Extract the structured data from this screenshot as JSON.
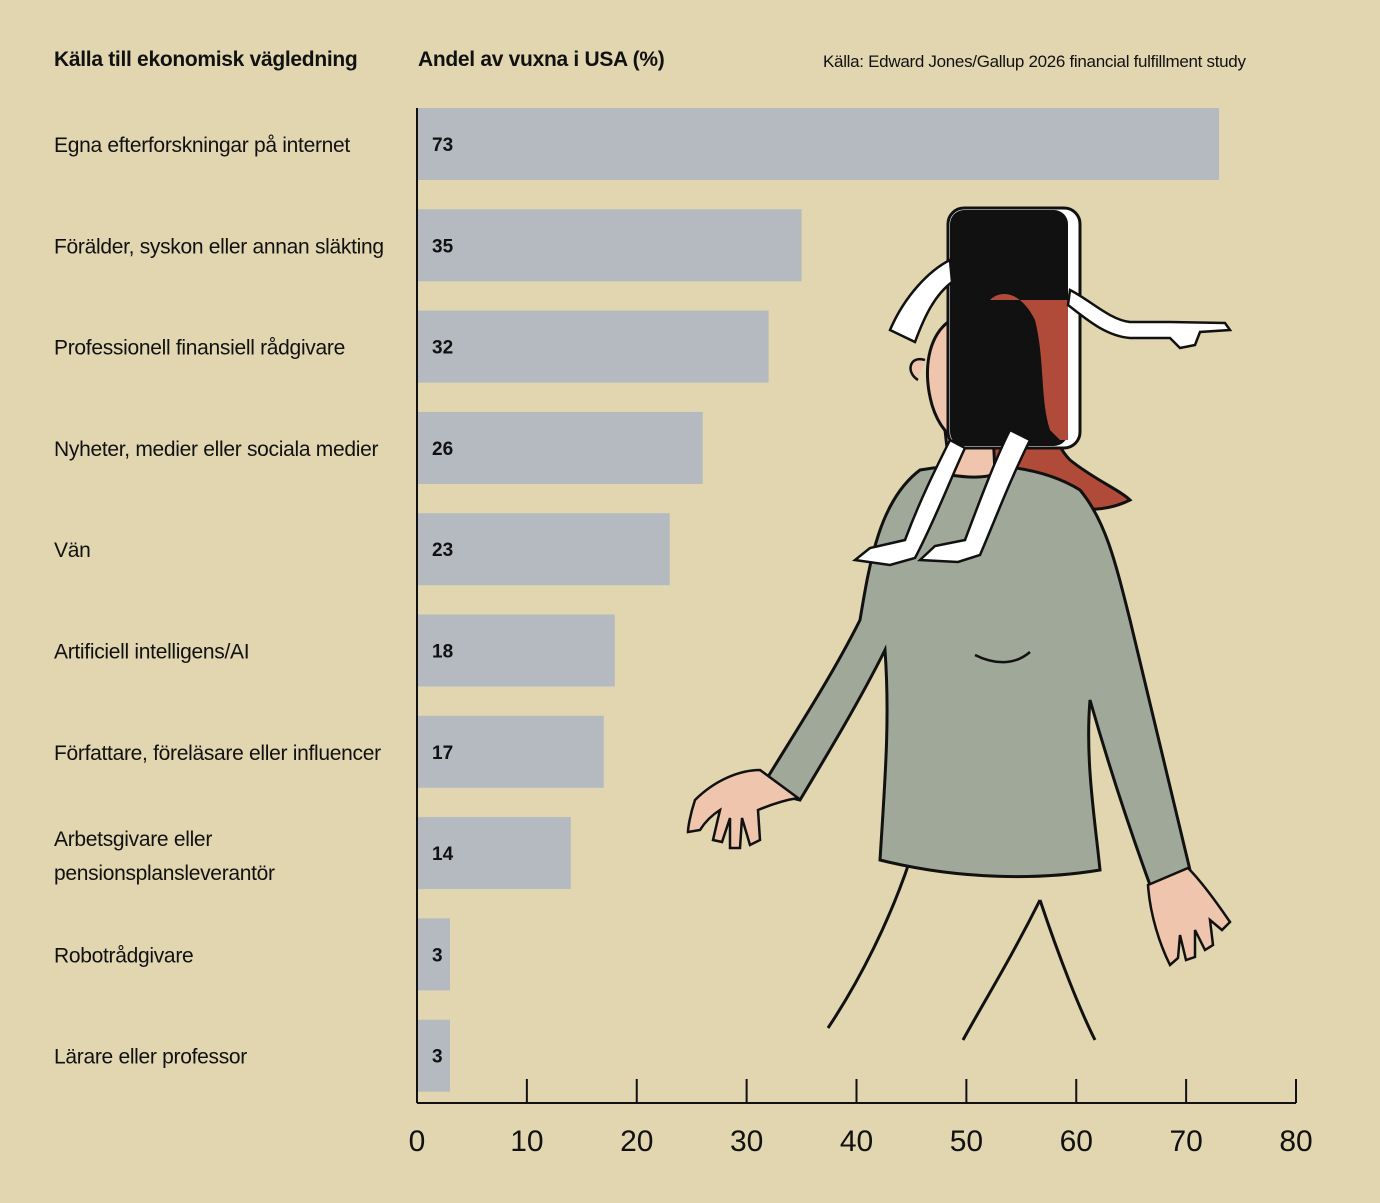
{
  "header": {
    "category_heading": "Källa till ekonomisk vägledning",
    "value_heading": "Andel av vuxna i USA (%)",
    "source": "Källa: Edward Jones/Gallup 2026 financial fulfillment study"
  },
  "colors": {
    "background": "#e1d6b0",
    "bar": "#b4bac0",
    "axis": "#111111"
  },
  "chart_data": {
    "type": "bar",
    "orientation": "horizontal",
    "title": "",
    "xlabel": "Andel av vuxna i USA (%)",
    "ylabel": "Källa till ekonomisk vägledning",
    "categories": [
      [
        "Egna efterforskningar på internet"
      ],
      [
        "Förälder, syskon eller annan släkting"
      ],
      [
        "Professionell finansiell rådgivare"
      ],
      [
        "Nyheter, medier eller sociala medier"
      ],
      [
        "Vän"
      ],
      [
        "Artificiell intelligens/AI"
      ],
      [
        "Författare, föreläsare eller influencer"
      ],
      [
        "Arbetsgivare eller",
        "pensionsplansleverantör"
      ],
      [
        "Robotrådgivare"
      ],
      [
        "Lärare eller professor"
      ]
    ],
    "values": [
      73,
      35,
      32,
      26,
      23,
      18,
      17,
      14,
      3,
      3
    ],
    "xlim": [
      0,
      80
    ],
    "xticks": [
      0,
      10,
      20,
      30,
      40,
      50,
      60,
      70,
      80
    ],
    "grid": false,
    "data_labels": true
  }
}
